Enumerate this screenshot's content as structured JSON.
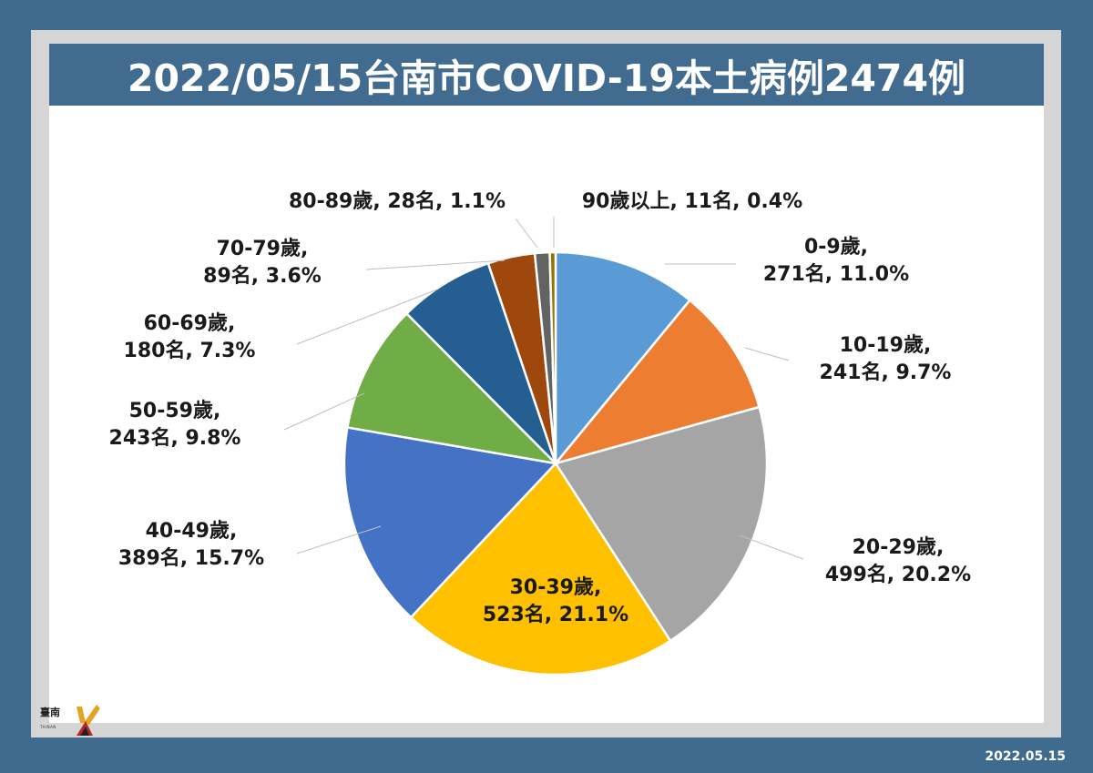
{
  "header": {
    "title": "2022/05/15台南市COVID-19本土病例2474例"
  },
  "footer": {
    "date": "2022.05.15"
  },
  "logo": {
    "text": "臺南",
    "subtext": "TAINAN"
  },
  "chart_data": {
    "type": "pie",
    "title": "2022/05/15台南市COVID-19本土病例2474例",
    "categories": [
      "0-9歲",
      "10-19歲",
      "20-29歲",
      "30-39歲",
      "40-49歲",
      "50-59歲",
      "60-69歲",
      "70-79歲",
      "80-89歲",
      "90歲以上"
    ],
    "values": [
      271,
      241,
      499,
      523,
      389,
      243,
      180,
      89,
      28,
      11
    ],
    "percents": [
      "11.0%",
      "9.7%",
      "20.2%",
      "21.1%",
      "15.7%",
      "9.8%",
      "7.3%",
      "3.6%",
      "1.1%",
      "0.4%"
    ],
    "colors": [
      "#5b9bd5",
      "#ed7d31",
      "#a5a5a5",
      "#ffc000",
      "#4472c4",
      "#70ad47",
      "#255e91",
      "#9e480e",
      "#636363",
      "#997300"
    ],
    "labels": [
      {
        "line1": "0-9歲,",
        "line2": "271名, 11.0%"
      },
      {
        "line1": "10-19歲,",
        "line2": "241名, 9.7%"
      },
      {
        "line1": "20-29歲,",
        "line2": "499名, 20.2%"
      },
      {
        "line1": "30-39歲,",
        "line2": "523名, 21.1%"
      },
      {
        "line1": "40-49歲,",
        "line2": "389名, 15.7%"
      },
      {
        "line1": "50-59歲,",
        "line2": "243名, 9.8%"
      },
      {
        "line1": "60-69歲,",
        "line2": "180名, 7.3%"
      },
      {
        "line1": "70-79歲,",
        "line2": "89名, 3.6%"
      },
      {
        "line1": "80-89歲, 28名, 1.1%",
        "line2": ""
      },
      {
        "line1": "90歲以上, 11名, 0.4%",
        "line2": ""
      }
    ]
  }
}
